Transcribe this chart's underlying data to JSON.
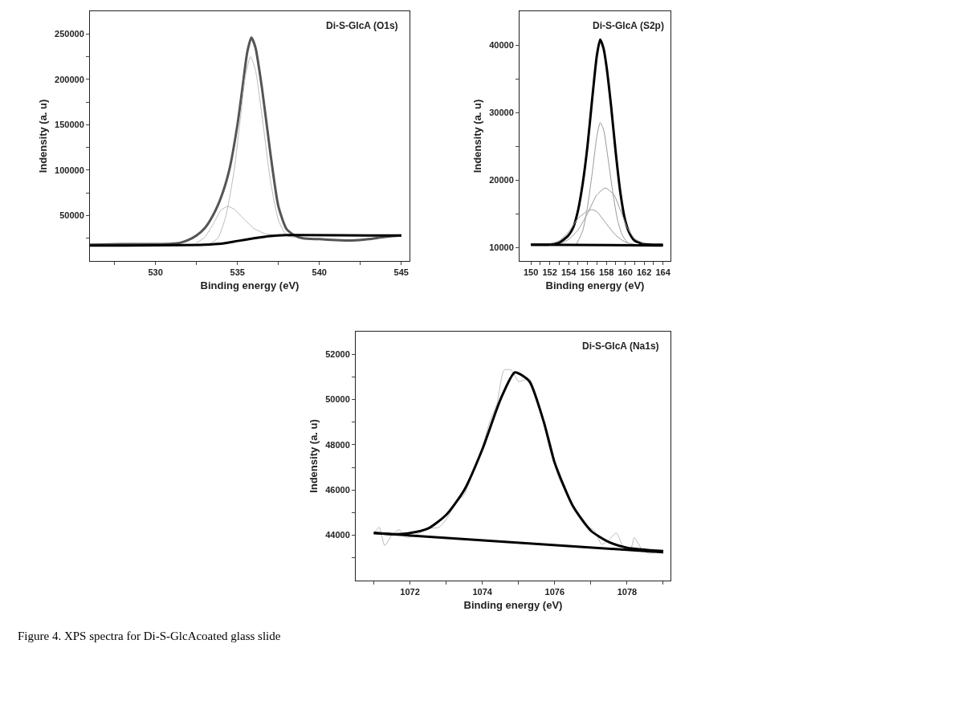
{
  "chart_data": [
    {
      "type": "line",
      "xlabel": "Binding energy (eV)",
      "ylabel": "Indensity (a. u)",
      "annotations": [
        "Di-S-GlcA (O1s)"
      ],
      "xlim": [
        526,
        545.5
      ],
      "ylim": [
        0,
        275000
      ],
      "xticks": [
        {
          "value": 527.5,
          "label": null
        },
        530,
        {
          "value": 532.5,
          "label": null
        },
        535,
        {
          "value": 537.5,
          "label": null
        },
        540,
        {
          "value": 542.5,
          "label": null
        },
        545
      ],
      "yticks": [
        {
          "value": 25000,
          "label": null
        },
        50000,
        {
          "value": 75000,
          "label": null
        },
        100000,
        {
          "value": 125000,
          "label": null
        },
        150000,
        {
          "value": 175000,
          "label": null
        },
        200000,
        {
          "value": 225000,
          "label": null
        },
        250000
      ],
      "series": [
        {
          "color": "#555555",
          "x": [
            526,
            528,
            530,
            531,
            531.5,
            532,
            532.5,
            533,
            533.5,
            534,
            534.5,
            535,
            535.3,
            535.6,
            535.85,
            536.1,
            536.5,
            537,
            537.5,
            538,
            538.5,
            539,
            540,
            541,
            542,
            543,
            544,
            545
          ],
          "values": [
            18000,
            18500,
            18500,
            19000,
            20000,
            23000,
            28000,
            36000,
            50000,
            70000,
            100000,
            150000,
            190000,
            230000,
            246000,
            235000,
            190000,
            120000,
            60000,
            35000,
            28000,
            25000,
            24000,
            23000,
            22500,
            24000,
            26500,
            28000
          ]
        },
        {
          "color": "#bbbbbb",
          "x": [
            533.2,
            533.8,
            534.3,
            534.8,
            535.2,
            535.5,
            535.8,
            536.1,
            536.5,
            537,
            537.5,
            538,
            538.5
          ],
          "values": [
            18000,
            25000,
            50000,
            100000,
            160000,
            205000,
            225000,
            210000,
            160000,
            90000,
            45000,
            28000,
            26000
          ]
        },
        {
          "color": "#bbbbbb",
          "x": [
            532.5,
            533,
            533.5,
            534,
            534.4,
            534.8,
            535.3,
            536,
            536.7,
            537.5
          ],
          "values": [
            20000,
            26000,
            40000,
            56000,
            60000,
            57000,
            48000,
            36000,
            30000,
            28000
          ]
        },
        {
          "color": "#000000",
          "x": [
            526,
            533,
            534,
            535,
            536,
            537,
            538,
            545
          ],
          "values": [
            17000,
            18000,
            19000,
            22000,
            25000,
            27500,
            28500,
            28000
          ]
        }
      ]
    },
    {
      "type": "line",
      "xlabel": "Binding energy (eV)",
      "ylabel": "Indensity (a. u)",
      "annotations": [
        "Di-S-GlcA (S2p)"
      ],
      "xlim": [
        148.8,
        164.8
      ],
      "ylim": [
        8000,
        45000
      ],
      "xticks": [
        150,
        {
          "value": 151,
          "label": null
        },
        152,
        {
          "value": 153,
          "label": null
        },
        154,
        {
          "value": 155,
          "label": null
        },
        156,
        {
          "value": 157,
          "label": null
        },
        158,
        {
          "value": 159,
          "label": null
        },
        160,
        {
          "value": 161,
          "label": null
        },
        162,
        {
          "value": 163,
          "label": null
        },
        164
      ],
      "yticks": [
        10000,
        {
          "value": 15000,
          "label": null
        },
        20000,
        {
          "value": 25000,
          "label": null
        },
        30000,
        {
          "value": 35000,
          "label": null
        },
        40000
      ],
      "series": [
        {
          "color": "#000000",
          "x": [
            150,
            152,
            153,
            154,
            154.5,
            155,
            155.5,
            156,
            156.5,
            157,
            157.35,
            157.7,
            158,
            158.5,
            159,
            159.5,
            160,
            160.5,
            161,
            162,
            164
          ],
          "values": [
            10400,
            10450,
            10700,
            11800,
            13000,
            15500,
            19500,
            25000,
            32000,
            38500,
            40800,
            39500,
            37000,
            31000,
            24000,
            18000,
            14000,
            12000,
            11000,
            10500,
            10400
          ]
        },
        {
          "color": "#999999",
          "x": [
            154.8,
            155.5,
            156,
            156.5,
            157,
            157.35,
            157.7,
            158.2,
            158.7,
            159.2,
            159.7,
            160.3
          ],
          "values": [
            10400,
            12500,
            16000,
            21000,
            26500,
            28500,
            27500,
            23000,
            18000,
            14000,
            11800,
            10600
          ]
        },
        {
          "color": "#999999",
          "x": [
            153,
            154,
            155,
            156,
            157,
            157.9,
            158.8,
            159.5,
            160.2,
            161,
            162
          ],
          "values": [
            10500,
            11200,
            12600,
            15000,
            17800,
            18800,
            17800,
            15500,
            13000,
            11300,
            10600
          ]
        },
        {
          "color": "#999999",
          "x": [
            152,
            153,
            154,
            155,
            156,
            156.5,
            157,
            158,
            159,
            160,
            161
          ],
          "values": [
            10500,
            11000,
            12300,
            14300,
            15400,
            15600,
            15300,
            13500,
            11800,
            10800,
            10450
          ]
        },
        {
          "color": "#000000",
          "x": [
            150,
            164
          ],
          "values": [
            10400,
            10300
          ]
        }
      ]
    },
    {
      "type": "line",
      "xlabel": "Binding energy (eV)",
      "ylabel": "Indensity (a. u)",
      "annotations": [
        "Di-S-GlcA (Na1s)",
        "Figure 4. XPS spectra for Di-S-GlcAcoated glass slide"
      ],
      "xlim": [
        1070.5,
        1079.2
      ],
      "ylim": [
        42000,
        53000
      ],
      "xticks": [
        {
          "value": 1071,
          "label": null
        },
        1072,
        {
          "value": 1073,
          "label": null
        },
        1074,
        {
          "value": 1075,
          "label": null
        },
        1076,
        {
          "value": 1077,
          "label": null
        },
        1078,
        {
          "value": 1079,
          "label": null
        }
      ],
      "yticks": [
        {
          "value": 43000,
          "label": null
        },
        44000,
        {
          "value": 45000,
          "label": null
        },
        46000,
        {
          "value": 47000,
          "label": null
        },
        48000,
        {
          "value": 49000,
          "label": null
        },
        50000,
        {
          "value": 51000,
          "label": null
        },
        52000
      ],
      "series": [
        {
          "color": "#bbbbbb",
          "x": [
            1071,
            1071.15,
            1071.3,
            1071.5,
            1071.7,
            1071.9,
            1072.2,
            1072.5,
            1072.8,
            1073,
            1073.3,
            1073.5,
            1073.7,
            1074,
            1074.2,
            1074.4,
            1074.6,
            1074.8,
            1075,
            1075.3,
            1075.6,
            1075.9,
            1076.1,
            1076.5,
            1076.8,
            1077.1,
            1077.3,
            1077.5,
            1077.7,
            1077.9,
            1078.1,
            1078.2,
            1078.4,
            1078.6,
            1078.9,
            1079
          ],
          "values": [
            44100,
            44350,
            43550,
            44000,
            44250,
            43900,
            44050,
            44300,
            44350,
            44700,
            45500,
            45800,
            46600,
            47900,
            49000,
            49800,
            51300,
            51300,
            50800,
            50900,
            49500,
            48000,
            46600,
            45300,
            44500,
            44200,
            43600,
            43800,
            44100,
            43500,
            43400,
            43900,
            43400,
            43200,
            43300,
            43200
          ]
        },
        {
          "color": "#000000",
          "x": [
            1071,
            1071.5,
            1072,
            1072.5,
            1073,
            1073.5,
            1074,
            1074.5,
            1074.9,
            1075.3,
            1075.7,
            1076,
            1076.5,
            1077,
            1077.5,
            1078,
            1079
          ],
          "values": [
            44100,
            44050,
            44100,
            44300,
            44900,
            46000,
            47800,
            50000,
            51200,
            50800,
            49000,
            47200,
            45300,
            44200,
            43700,
            43450,
            43300
          ]
        },
        {
          "color": "#000000",
          "x": [
            1071,
            1079
          ],
          "values": [
            44100,
            43250
          ]
        }
      ]
    }
  ]
}
